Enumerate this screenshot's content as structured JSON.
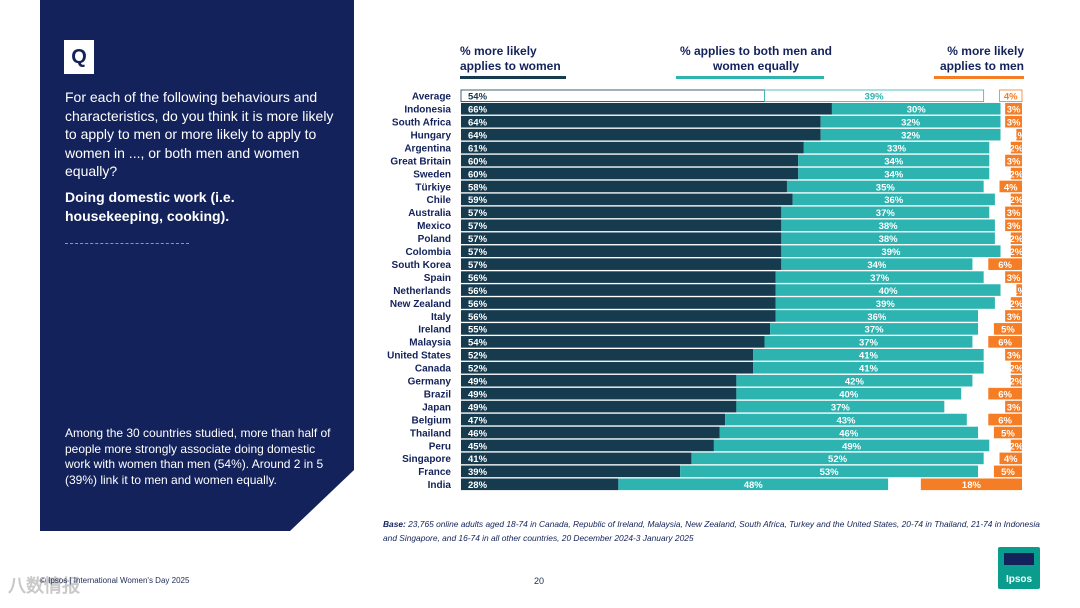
{
  "panel": {
    "q_label": "Q",
    "question": "For each of the following behaviours and characteristics, do you think it is more likely to apply to men or more likely to apply to women in ..., or both men and women equally?",
    "subject": "Doing domestic work (i.e. housekeeping, cooking).",
    "summary": "Among the 30 countries studied, more than half of people more strongly associate doing domestic work with women than men (54%). Around 2 in 5 (39%) link it to men and women equally."
  },
  "headers": {
    "women": "% more likely applies to women",
    "both": "% applies to both men and women equally",
    "men": "% more likely applies to men"
  },
  "base_label": "Base:",
  "base_text": "23,765 online adults aged 18-74 in Canada, Republic of Ireland, Malaysia, New Zealand, South Africa, Turkey and the United States, 20-74 in Thailand, 21-74 in Indonesia and Singapore, and 16-74 in all other countries, 20 December 2024-3 January 2025",
  "footer": {
    "source": "© Ipsos | International Women's Day 2025",
    "page": "20",
    "logo": "Ipsos",
    "watermark": "八数情报"
  },
  "colors": {
    "women": "#163a4e",
    "both": "#2db3b0",
    "men": "#f47d26",
    "navy": "#13225a"
  },
  "chart_data": {
    "type": "bar",
    "stacked": true,
    "orientation": "horizontal",
    "categories": [
      "Average",
      "Indonesia",
      "South Africa",
      "Hungary",
      "Argentina",
      "Great Britain",
      "Sweden",
      "Türkiye",
      "Chile",
      "Australia",
      "Mexico",
      "Poland",
      "Colombia",
      "South Korea",
      "Spain",
      "Netherlands",
      "New Zealand",
      "Italy",
      "Ireland",
      "Malaysia",
      "United States",
      "Canada",
      "Germany",
      "Brazil",
      "Japan",
      "Belgium",
      "Thailand",
      "Peru",
      "Singapore",
      "France",
      "India"
    ],
    "series": [
      {
        "name": "% more likely applies to women",
        "values": [
          54,
          66,
          64,
          64,
          61,
          60,
          60,
          58,
          59,
          57,
          57,
          57,
          57,
          57,
          56,
          56,
          56,
          56,
          55,
          54,
          52,
          52,
          49,
          49,
          49,
          47,
          46,
          45,
          41,
          39,
          28
        ]
      },
      {
        "name": "% applies to both men and women equally",
        "values": [
          39,
          30,
          32,
          32,
          33,
          34,
          34,
          35,
          36,
          37,
          38,
          38,
          39,
          34,
          37,
          40,
          39,
          36,
          37,
          37,
          41,
          41,
          42,
          40,
          37,
          43,
          46,
          49,
          52,
          53,
          48
        ]
      },
      {
        "name": "% more likely applies to men",
        "values": [
          4,
          3,
          3,
          1,
          2,
          3,
          2,
          4,
          2,
          3,
          3,
          2,
          2,
          6,
          3,
          1,
          2,
          3,
          5,
          6,
          3,
          2,
          2,
          6,
          3,
          6,
          5,
          2,
          4,
          5,
          18
        ]
      }
    ],
    "labels_women": [
      "54%",
      "66%",
      "64%",
      "64%",
      "61%",
      "60%",
      "60%",
      "58%",
      "59%",
      "57%",
      "57%",
      "57%",
      "57%",
      "57%",
      "56%",
      "56%",
      "56%",
      "56%",
      "55%",
      "54%",
      "52%",
      "52%",
      "49%",
      "49%",
      "49%",
      "47%",
      "46%",
      "45%",
      "41%",
      "39%",
      "28%"
    ],
    "labels_both": [
      "39%",
      "30%",
      "32%",
      "32%",
      "33%",
      "34%",
      "34%",
      "35%",
      "36%",
      "37%",
      "38%",
      "38%",
      "39%",
      "34%",
      "37%",
      "40%",
      "39%",
      "36%",
      "37%",
      "37%",
      "41%",
      "41%",
      "42%",
      "40%",
      "37%",
      "43%",
      "46%",
      "49%",
      "52%",
      "53%",
      "48%"
    ],
    "labels_men": [
      "4%",
      "3%",
      "3%",
      "1%",
      "2%",
      "3%",
      "2%",
      "4%",
      "2%",
      "3%",
      "3%",
      "2%",
      "2%",
      "6%",
      "3%",
      "1%",
      "2%",
      "3%",
      "5%",
      "6%",
      "3%",
      "2%",
      "2%",
      "6%",
      "3%",
      "6%",
      "5%",
      "2%",
      "4%",
      "5%",
      "18%"
    ],
    "xlim": [
      0,
      100
    ]
  }
}
